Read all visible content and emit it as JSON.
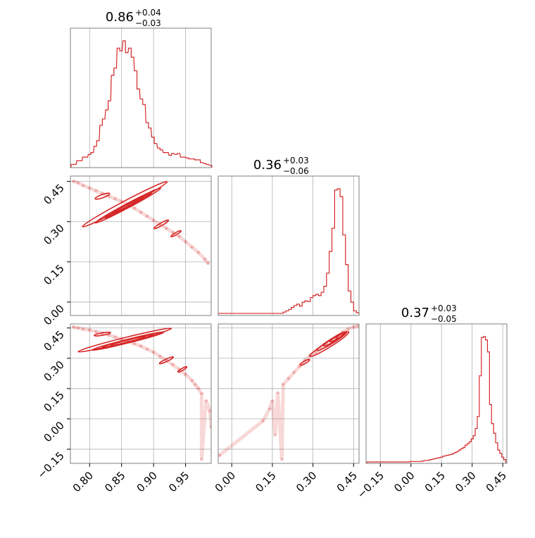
{
  "colors": {
    "series": "#d62728",
    "grid": "#b0b0b0",
    "frame": "#7f7f7f"
  },
  "chart_data": [
    {
      "type": "histogram",
      "panel": "diag-0",
      "title": {
        "median": "0.86",
        "plus": "+0.04",
        "minus": "−0.03"
      },
      "xlim": [
        0.77,
        0.99
      ],
      "xticks": [
        0.8,
        0.85,
        0.9,
        0.95
      ],
      "x": [
        0.773,
        0.777,
        0.782,
        0.786,
        0.791,
        0.795,
        0.8,
        0.804,
        0.809,
        0.813,
        0.818,
        0.822,
        0.827,
        0.831,
        0.836,
        0.84,
        0.845,
        0.849,
        0.854,
        0.858,
        0.863,
        0.867,
        0.872,
        0.876,
        0.881,
        0.885,
        0.89,
        0.894,
        0.899,
        0.903,
        0.908,
        0.912,
        0.917,
        0.921,
        0.926,
        0.93,
        0.935,
        0.939,
        0.944,
        0.948,
        0.953,
        0.957,
        0.962,
        0.966,
        0.971,
        0.975,
        0.98,
        0.984,
        0.989
      ],
      "values": [
        2,
        2,
        6,
        6,
        10,
        10,
        13,
        15,
        22,
        28,
        45,
        52,
        62,
        72,
        100,
        108,
        130,
        127,
        138,
        125,
        130,
        120,
        105,
        85,
        74,
        68,
        48,
        42,
        32,
        25,
        20,
        18,
        15,
        15,
        12,
        14,
        13,
        14,
        10,
        10,
        9,
        8,
        8,
        7,
        7,
        4,
        3,
        2,
        1
      ]
    },
    {
      "type": "histogram",
      "panel": "diag-1",
      "title": {
        "median": "0.36",
        "plus": "+0.03",
        "minus": "−0.06"
      },
      "xlim": [
        -0.05,
        0.47
      ],
      "xticks": [
        0.0,
        0.15,
        0.3,
        0.45
      ],
      "x": [
        -0.045,
        -0.035,
        -0.025,
        -0.015,
        -0.005,
        0.005,
        0.015,
        0.025,
        0.035,
        0.045,
        0.055,
        0.065,
        0.075,
        0.085,
        0.095,
        0.105,
        0.115,
        0.125,
        0.135,
        0.145,
        0.155,
        0.165,
        0.175,
        0.185,
        0.195,
        0.205,
        0.215,
        0.225,
        0.235,
        0.245,
        0.255,
        0.265,
        0.275,
        0.285,
        0.295,
        0.305,
        0.315,
        0.325,
        0.335,
        0.345,
        0.355,
        0.365,
        0.375,
        0.385,
        0.395,
        0.405,
        0.415,
        0.425,
        0.435,
        0.445,
        0.455,
        0.465
      ],
      "values": [
        1,
        1,
        1,
        1,
        1,
        1,
        1,
        1,
        1,
        1,
        1,
        1,
        1,
        1,
        1,
        1,
        1,
        1,
        1,
        1,
        1,
        1,
        1,
        1,
        3,
        5,
        7,
        10,
        13,
        15,
        12,
        18,
        20,
        19,
        25,
        28,
        30,
        28,
        33,
        42,
        62,
        95,
        130,
        188,
        190,
        178,
        120,
        75,
        35,
        18,
        5,
        2
      ]
    },
    {
      "type": "histogram",
      "panel": "diag-2",
      "title": {
        "median": "0.37",
        "plus": "+0.03",
        "minus": "−0.05"
      },
      "xlim": [
        -0.22,
        0.47
      ],
      "xticks": [
        -0.15,
        0.0,
        0.15,
        0.3,
        0.45
      ],
      "x": [
        -0.21,
        -0.2,
        -0.19,
        -0.18,
        -0.17,
        -0.16,
        -0.15,
        -0.14,
        -0.13,
        -0.12,
        -0.11,
        -0.1,
        -0.09,
        -0.08,
        -0.07,
        -0.06,
        -0.05,
        -0.04,
        -0.03,
        -0.02,
        -0.01,
        0.0,
        0.01,
        0.02,
        0.03,
        0.04,
        0.05,
        0.06,
        0.07,
        0.08,
        0.09,
        0.1,
        0.11,
        0.12,
        0.13,
        0.14,
        0.15,
        0.16,
        0.17,
        0.18,
        0.19,
        0.2,
        0.21,
        0.22,
        0.23,
        0.24,
        0.25,
        0.26,
        0.27,
        0.28,
        0.29,
        0.3,
        0.31,
        0.32,
        0.33,
        0.34,
        0.35,
        0.36,
        0.37,
        0.38,
        0.39,
        0.4,
        0.41,
        0.42,
        0.43,
        0.44,
        0.45,
        0.46
      ],
      "values": [
        0,
        0,
        0,
        0,
        0,
        0,
        0,
        0,
        0,
        0,
        0,
        0,
        0,
        0,
        0,
        0,
        0,
        0,
        0,
        0,
        0,
        1,
        1,
        1,
        1,
        1,
        1,
        2,
        3,
        3,
        4,
        5,
        6,
        7,
        8,
        9,
        10,
        12,
        13,
        14,
        15,
        16,
        18,
        20,
        22,
        25,
        28,
        30,
        35,
        38,
        42,
        48,
        55,
        70,
        95,
        180,
        260,
        262,
        255,
        230,
        120,
        80,
        60,
        40,
        25,
        18,
        10,
        5
      ]
    },
    {
      "type": "scatter",
      "panel": "offdiag-1-0",
      "xlim": [
        0.77,
        0.99
      ],
      "ylim": [
        -0.05,
        0.47
      ],
      "yticks": [
        0.0,
        0.15,
        0.3,
        0.45
      ],
      "points": [
        [
          0.775,
          0.45
        ],
        [
          0.782,
          0.445
        ],
        [
          0.79,
          0.435
        ],
        [
          0.8,
          0.425
        ],
        [
          0.81,
          0.415
        ],
        [
          0.82,
          0.405
        ],
        [
          0.83,
          0.395
        ],
        [
          0.84,
          0.385
        ],
        [
          0.85,
          0.375
        ],
        [
          0.86,
          0.365
        ],
        [
          0.87,
          0.35
        ],
        [
          0.88,
          0.335
        ],
        [
          0.89,
          0.32
        ],
        [
          0.9,
          0.305
        ],
        [
          0.91,
          0.29
        ],
        [
          0.92,
          0.275
        ],
        [
          0.93,
          0.26
        ],
        [
          0.94,
          0.245
        ],
        [
          0.95,
          0.225
        ],
        [
          0.96,
          0.205
        ],
        [
          0.97,
          0.185
        ],
        [
          0.98,
          0.16
        ],
        [
          0.985,
          0.145
        ]
      ],
      "contours": [
        {
          "cx": 0.855,
          "cy": 0.365,
          "rx": 0.075,
          "ry": 0.011,
          "angle": -28
        },
        {
          "cx": 0.86,
          "cy": 0.36,
          "rx": 0.058,
          "ry": 0.008,
          "angle": -28
        },
        {
          "cx": 0.86,
          "cy": 0.36,
          "rx": 0.042,
          "ry": 0.006,
          "angle": -28
        },
        {
          "cx": 0.86,
          "cy": 0.36,
          "rx": 0.028,
          "ry": 0.004,
          "angle": -28
        },
        {
          "cx": 0.82,
          "cy": 0.395,
          "rx": 0.012,
          "ry": 0.006,
          "angle": -20
        },
        {
          "cx": 0.912,
          "cy": 0.29,
          "rx": 0.013,
          "ry": 0.005,
          "angle": -30
        },
        {
          "cx": 0.935,
          "cy": 0.255,
          "rx": 0.009,
          "ry": 0.004,
          "angle": -30
        }
      ]
    },
    {
      "type": "scatter",
      "panel": "offdiag-2-0",
      "xlim": [
        0.77,
        0.99
      ],
      "ylim": [
        -0.22,
        0.47
      ],
      "yticks": [
        -0.15,
        0.0,
        0.15,
        0.3,
        0.45
      ],
      "points": [
        [
          0.775,
          0.455
        ],
        [
          0.782,
          0.45
        ],
        [
          0.79,
          0.445
        ],
        [
          0.8,
          0.44
        ],
        [
          0.81,
          0.432
        ],
        [
          0.82,
          0.425
        ],
        [
          0.83,
          0.415
        ],
        [
          0.84,
          0.405
        ],
        [
          0.85,
          0.395
        ],
        [
          0.86,
          0.385
        ],
        [
          0.87,
          0.372
        ],
        [
          0.88,
          0.36
        ],
        [
          0.89,
          0.345
        ],
        [
          0.9,
          0.33
        ],
        [
          0.91,
          0.31
        ],
        [
          0.92,
          0.29
        ],
        [
          0.93,
          0.268
        ],
        [
          0.94,
          0.245
        ],
        [
          0.95,
          0.22
        ],
        [
          0.96,
          0.19
        ],
        [
          0.965,
          0.17
        ],
        [
          0.97,
          0.15
        ],
        [
          0.975,
          0.125
        ],
        [
          0.982,
          0.09
        ],
        [
          0.988,
          0.04
        ],
        [
          0.99,
          -0.04
        ],
        [
          0.975,
          -0.2
        ]
      ],
      "contours": [
        {
          "cx": 0.855,
          "cy": 0.39,
          "rx": 0.075,
          "ry": 0.012,
          "angle": -14
        },
        {
          "cx": 0.86,
          "cy": 0.385,
          "rx": 0.058,
          "ry": 0.009,
          "angle": -14
        },
        {
          "cx": 0.86,
          "cy": 0.385,
          "rx": 0.042,
          "ry": 0.007,
          "angle": -14
        },
        {
          "cx": 0.86,
          "cy": 0.385,
          "rx": 0.028,
          "ry": 0.005,
          "angle": -14
        },
        {
          "cx": 0.82,
          "cy": 0.42,
          "rx": 0.013,
          "ry": 0.006,
          "angle": -10
        },
        {
          "cx": 0.92,
          "cy": 0.29,
          "rx": 0.012,
          "ry": 0.006,
          "angle": -25
        },
        {
          "cx": 0.945,
          "cy": 0.245,
          "rx": 0.008,
          "ry": 0.005,
          "angle": -30
        }
      ]
    },
    {
      "type": "scatter",
      "panel": "offdiag-2-1",
      "xlim": [
        -0.05,
        0.47
      ],
      "ylim": [
        -0.22,
        0.47
      ],
      "points": [
        [
          -0.045,
          -0.18
        ],
        [
          0.115,
          -0.01
        ],
        [
          0.16,
          -0.08
        ],
        [
          0.185,
          -0.2
        ],
        [
          0.14,
          0.05
        ],
        [
          0.15,
          0.09
        ],
        [
          0.17,
          0.13
        ],
        [
          0.19,
          0.17
        ],
        [
          0.21,
          0.2
        ],
        [
          0.23,
          0.23
        ],
        [
          0.25,
          0.26
        ],
        [
          0.27,
          0.29
        ],
        [
          0.29,
          0.315
        ],
        [
          0.31,
          0.33
        ],
        [
          0.33,
          0.35
        ],
        [
          0.35,
          0.37
        ],
        [
          0.37,
          0.39
        ],
        [
          0.39,
          0.41
        ],
        [
          0.41,
          0.43
        ],
        [
          0.43,
          0.445
        ],
        [
          0.45,
          0.455
        ],
        [
          0.465,
          0.46
        ]
      ],
      "contours": [
        {
          "cx": 0.36,
          "cy": 0.37,
          "rx": 0.085,
          "ry": 0.014,
          "angle": -32
        },
        {
          "cx": 0.37,
          "cy": 0.385,
          "rx": 0.065,
          "ry": 0.011,
          "angle": -32
        },
        {
          "cx": 0.38,
          "cy": 0.395,
          "rx": 0.048,
          "ry": 0.009,
          "angle": -32
        },
        {
          "cx": 0.39,
          "cy": 0.405,
          "rx": 0.032,
          "ry": 0.007,
          "angle": -32
        },
        {
          "cx": 0.4,
          "cy": 0.41,
          "rx": 0.018,
          "ry": 0.005,
          "angle": -32
        },
        {
          "cx": 0.27,
          "cy": 0.28,
          "rx": 0.02,
          "ry": 0.006,
          "angle": -30
        }
      ]
    }
  ]
}
